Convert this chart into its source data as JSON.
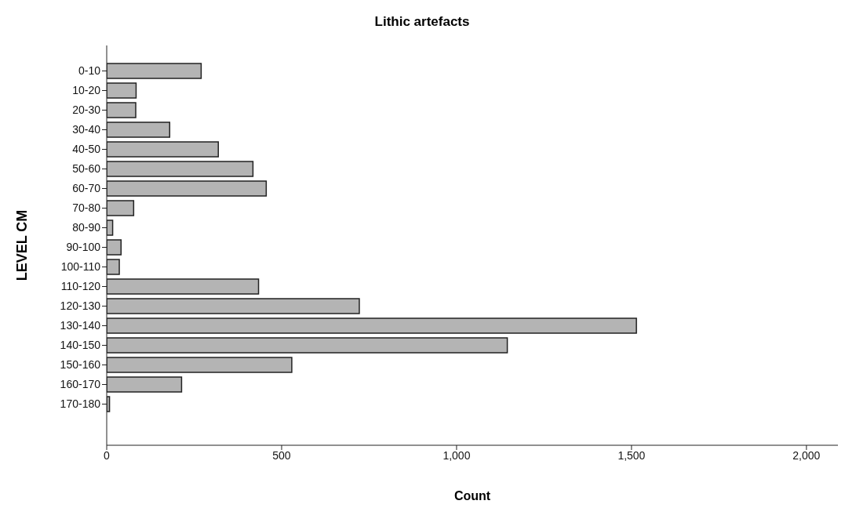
{
  "chart_data": {
    "type": "bar",
    "orientation": "horizontal",
    "title": "Lithic artefacts",
    "xlabel": "Count",
    "ylabel": "LEVEL CM",
    "categories": [
      "0-10",
      "10-20",
      "20-30",
      "30-40",
      "40-50",
      "50-60",
      "60-70",
      "70-80",
      "80-90",
      "90-100",
      "100-110",
      "110-120",
      "120-130",
      "130-140",
      "140-150",
      "150-160",
      "160-170",
      "170-180"
    ],
    "values": [
      270,
      84,
      83,
      180,
      319,
      418,
      456,
      77,
      17,
      41,
      36,
      434,
      722,
      1514,
      1145,
      529,
      214,
      8
    ],
    "color": "#b4b4b4",
    "xlim": [
      0,
      2090
    ],
    "xticks": [
      0,
      {
        "value": 500,
        "label": "500"
      },
      {
        "value": 1000,
        "label": "1,000"
      },
      {
        "value": 1500,
        "label": "1,500"
      },
      {
        "value": 2000,
        "label": "2,000"
      }
    ],
    "grid": false,
    "legend": false
  }
}
